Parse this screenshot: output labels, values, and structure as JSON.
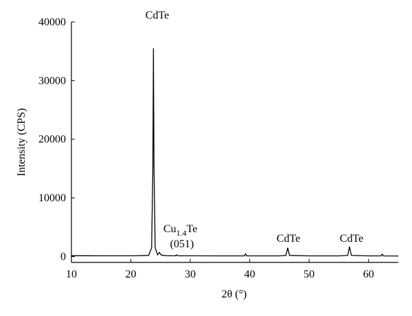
{
  "chart_data": {
    "type": "line",
    "xlabel": "2θ (°)",
    "ylabel": "Intensity (CPS)",
    "xlim": [
      10,
      65
    ],
    "xticks": [
      10,
      20,
      30,
      40,
      50,
      60
    ],
    "ylim": [
      -1000,
      40000
    ],
    "yticks": [
      0,
      10000,
      20000,
      30000,
      40000
    ],
    "series": [
      {
        "color": "#000000",
        "x": [
          10,
          15,
          20,
          23.0,
          23.5,
          23.7,
          23.8,
          23.9,
          24.1,
          24.5,
          24.8,
          25.1,
          26,
          27.5,
          27.7,
          27.9,
          30,
          35,
          39.1,
          39.3,
          39.5,
          45,
          46.1,
          46.4,
          46.7,
          50,
          55,
          56.5,
          56.8,
          57.1,
          60,
          62.1,
          62.3,
          62.5,
          65
        ],
        "values": [
          150,
          130,
          120,
          200,
          1500,
          15000,
          35500,
          15000,
          1500,
          300,
          700,
          250,
          150,
          130,
          300,
          130,
          120,
          110,
          110,
          450,
          110,
          110,
          200,
          1500,
          200,
          110,
          110,
          200,
          1700,
          200,
          110,
          110,
          400,
          110,
          100
        ]
      }
    ],
    "annotations": [
      {
        "text": "CdTe"
      },
      {
        "parts": [
          "Cu",
          "1.4",
          "Te"
        ]
      },
      {
        "text": "(051)"
      },
      {
        "text": "CdTe"
      },
      {
        "text": "CdTe"
      }
    ]
  }
}
